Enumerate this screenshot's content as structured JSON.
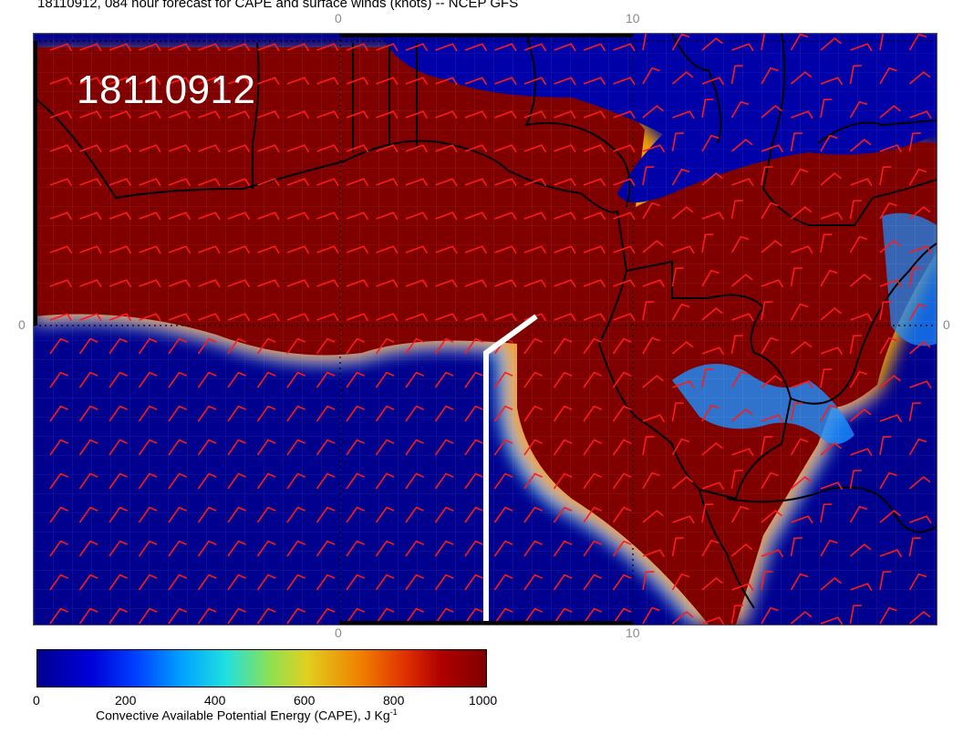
{
  "title": "18110912, 084 hour forecast for CAPE and surface winds (knots) -- NCEP GFS",
  "timestamp_label": "18110912",
  "axis_ticks": {
    "top": [
      "0",
      "10"
    ],
    "bottom": [
      "0",
      "10"
    ],
    "left": "0",
    "right": "0"
  },
  "colorbar": {
    "labels": [
      "0",
      "200",
      "400",
      "600",
      "800",
      "1000"
    ],
    "title": "Convective Available Potential Energy (CAPE), J Kg",
    "title_unit_sup": "-1",
    "range": [
      0,
      1000
    ]
  },
  "colors": {
    "high_cape": "#800000",
    "low_cape": "#0000a0",
    "wind_barbs": "#ff0000",
    "coastlines": "#000000",
    "section_line": "#ffffff"
  }
}
